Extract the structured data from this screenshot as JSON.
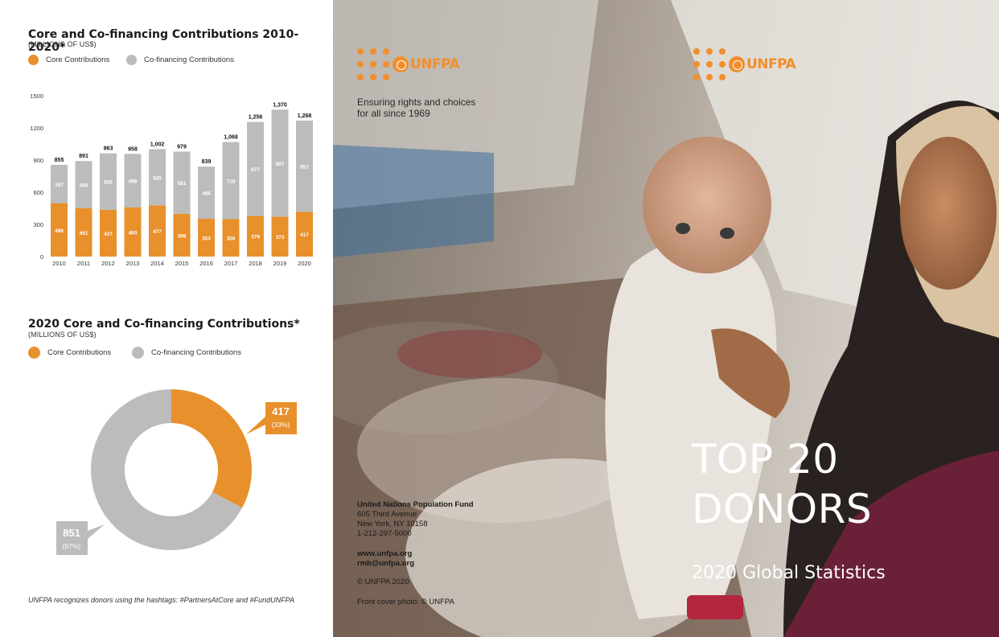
{
  "bar_chart": {
    "title": "Core and Co-financing Contributions 2010-2020*",
    "subtitle": "(MILLIONS OF US$)",
    "legend": [
      {
        "label": "Core Contributions",
        "color": "#e8902b"
      },
      {
        "label": "Co-financing Contributions",
        "color": "#bcbcbc"
      }
    ]
  },
  "donut_chart": {
    "title": "2020 Core and Co-financing Contributions*",
    "subtitle": "(MILLIONS OF US$)",
    "legend": [
      {
        "label": "Core Contributions",
        "color": "#e8902b"
      },
      {
        "label": "Co-financing Contributions",
        "color": "#bcbcbc"
      }
    ],
    "core_value": "417",
    "core_pct": "(33%)",
    "cofin_value": "851",
    "cofin_pct": "(67%)"
  },
  "chart_data": [
    {
      "type": "bar",
      "stacked": true,
      "title": "Core and Co-financing Contributions 2010-2020*",
      "subtitle": "(MILLIONS OF US$)",
      "categories": [
        "2010",
        "2011",
        "2012",
        "2013",
        "2014",
        "2015",
        "2016",
        "2017",
        "2018",
        "2019",
        "2020"
      ],
      "series": [
        {
          "name": "Core Contributions",
          "color": "#e8902b",
          "values": [
            498,
            451,
            437,
            460,
            477,
            398,
            353,
            350,
            379,
            373,
            417
          ]
        },
        {
          "name": "Co-financing Contributions",
          "color": "#bcbcbc",
          "values": [
            357,
            440,
            526,
            498,
            525,
            581,
            486,
            718,
            877,
            997,
            851
          ]
        }
      ],
      "totals": [
        855,
        891,
        963,
        958,
        1002,
        979,
        839,
        1068,
        1256,
        1370,
        1268
      ],
      "total_labels": [
        "855",
        "891",
        "963",
        "958",
        "1,002",
        "979",
        "839",
        "1,068",
        "1,256",
        "1,370",
        "1,268"
      ],
      "yticks": [
        0,
        300,
        600,
        900,
        1200,
        1500
      ],
      "ylim": [
        0,
        1500
      ],
      "legend_position": "top-left",
      "grid": false
    },
    {
      "type": "pie",
      "donut": true,
      "title": "2020 Core and Co-financing Contributions*",
      "subtitle": "(MILLIONS OF US$)",
      "slices": [
        {
          "label": "Core Contributions",
          "value": 417,
          "percent": 33,
          "color": "#e8902b"
        },
        {
          "label": "Co-financing Contributions",
          "value": 851,
          "percent": 67,
          "color": "#bcbcbc"
        }
      ],
      "legend_position": "top-left"
    }
  ],
  "footnote": "UNFPA recognizes donors using the hashtags: #PartnersAtCore and #FundUNFPA",
  "cover": {
    "logo_text": "UNFPA",
    "tagline_lines": [
      "Ensuring rights and choices",
      "for all since 1969"
    ],
    "address_lines": [
      "United Nations Population Fund",
      "605 Third Avenue",
      "New York, NY 10158",
      "1-212-297-5000"
    ],
    "web_lines": [
      "www.unfpa.org",
      "rmb@unfpa.org"
    ],
    "copyright": "© UNFPA 2020",
    "photo_credit": "Front cover photo: © UNFPA",
    "title_lines": [
      "TOP 20",
      "DONORS"
    ],
    "subtitle": "2020 Global Statistics"
  },
  "colors": {
    "orange": "#e8902b",
    "gray": "#bcbcbc",
    "logo_orange": "#f08f2c"
  }
}
